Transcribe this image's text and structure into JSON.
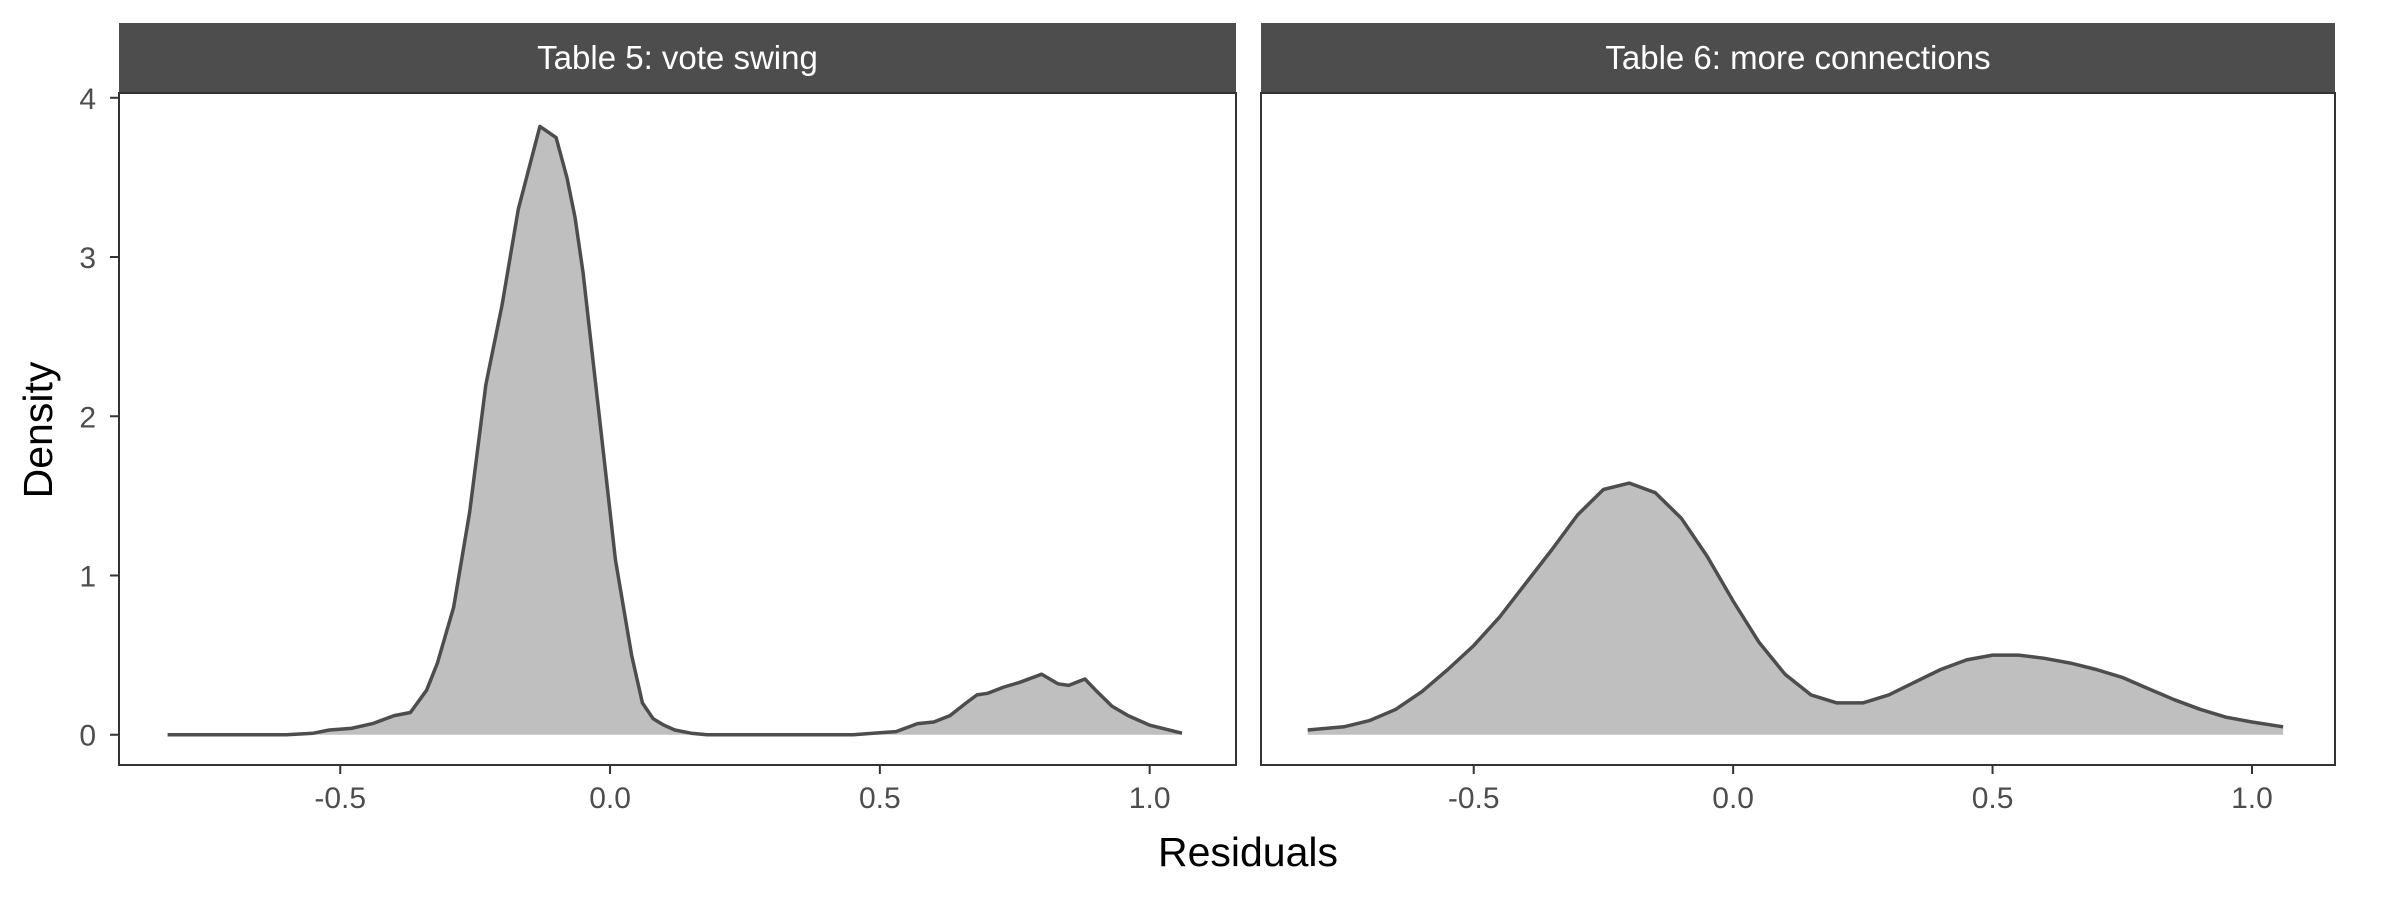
{
  "chart_data": {
    "type": "area",
    "xlabel": "Residuals",
    "ylabel": "Density",
    "fill_color": "#bfbfbf",
    "line_color": "#4d4d4d",
    "strip_color": "#4d4d4d",
    "grid": false,
    "x_ticks": [
      -0.5,
      0.0,
      0.5,
      1.0
    ],
    "x_tick_labels": [
      "-0.5",
      "0.0",
      "0.5",
      "1.0"
    ],
    "y_ticks": [
      0,
      1,
      2,
      3,
      4
    ],
    "y_tick_labels": [
      "0",
      "1",
      "2",
      "3",
      "4"
    ],
    "xlim": [
      -0.91,
      1.16
    ],
    "ylim": [
      -0.19,
      4.03
    ],
    "panels": [
      {
        "title": "Table 5: vote swing",
        "x": [
          -0.82,
          -0.6,
          -0.55,
          -0.52,
          -0.48,
          -0.44,
          -0.4,
          -0.37,
          -0.34,
          -0.32,
          -0.29,
          -0.26,
          -0.23,
          -0.2,
          -0.17,
          -0.13,
          -0.1,
          -0.08,
          -0.065,
          -0.05,
          -0.03,
          -0.01,
          0.01,
          0.04,
          0.06,
          0.08,
          0.1,
          0.12,
          0.15,
          0.18,
          0.21,
          0.25,
          0.35,
          0.45,
          0.53,
          0.57,
          0.6,
          0.63,
          0.66,
          0.68,
          0.7,
          0.73,
          0.76,
          0.8,
          0.83,
          0.85,
          0.88,
          0.9,
          0.93,
          0.96,
          1.0,
          1.06
        ],
        "y": [
          0.0,
          0.0,
          0.01,
          0.03,
          0.04,
          0.07,
          0.12,
          0.14,
          0.28,
          0.45,
          0.8,
          1.4,
          2.2,
          2.7,
          3.3,
          3.82,
          3.75,
          3.5,
          3.25,
          2.9,
          2.3,
          1.7,
          1.1,
          0.5,
          0.2,
          0.1,
          0.06,
          0.03,
          0.01,
          0.0,
          0.0,
          0.0,
          0.0,
          0.0,
          0.02,
          0.07,
          0.08,
          0.12,
          0.2,
          0.25,
          0.26,
          0.3,
          0.33,
          0.38,
          0.32,
          0.31,
          0.35,
          0.28,
          0.18,
          0.12,
          0.06,
          0.01
        ]
      },
      {
        "title": "Table 6: more connections",
        "x": [
          -0.82,
          -0.75,
          -0.7,
          -0.65,
          -0.6,
          -0.55,
          -0.5,
          -0.45,
          -0.4,
          -0.35,
          -0.3,
          -0.25,
          -0.2,
          -0.15,
          -0.1,
          -0.05,
          0.0,
          0.05,
          0.1,
          0.15,
          0.2,
          0.25,
          0.3,
          0.35,
          0.4,
          0.45,
          0.5,
          0.55,
          0.6,
          0.65,
          0.7,
          0.75,
          0.8,
          0.85,
          0.9,
          0.95,
          1.0,
          1.06
        ],
        "y": [
          0.03,
          0.05,
          0.09,
          0.16,
          0.27,
          0.41,
          0.56,
          0.74,
          0.95,
          1.16,
          1.38,
          1.54,
          1.58,
          1.52,
          1.36,
          1.12,
          0.84,
          0.58,
          0.38,
          0.25,
          0.2,
          0.2,
          0.25,
          0.33,
          0.41,
          0.47,
          0.5,
          0.5,
          0.48,
          0.45,
          0.41,
          0.36,
          0.29,
          0.22,
          0.16,
          0.11,
          0.08,
          0.05
        ]
      }
    ]
  }
}
